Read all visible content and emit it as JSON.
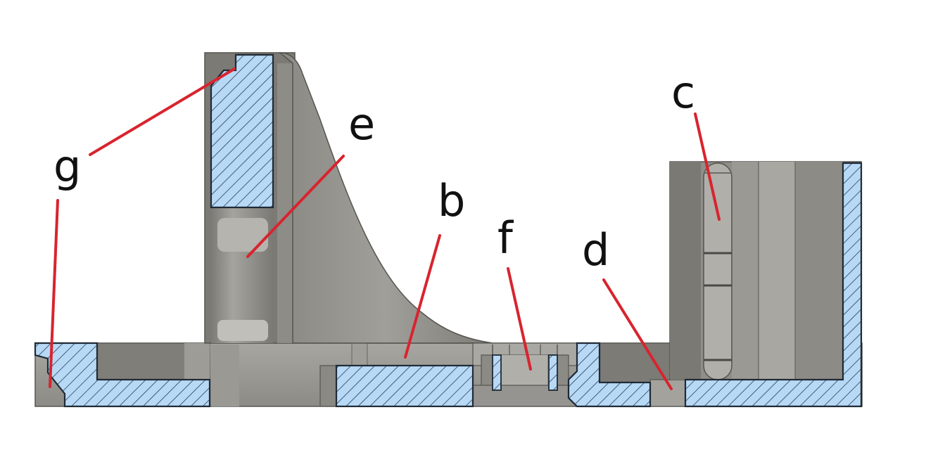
{
  "diagram": {
    "labels": {
      "g": "g",
      "e": "e",
      "b": "b",
      "f": "f",
      "d": "d",
      "c": "c"
    }
  },
  "colors": {
    "section_fill": "#b7d9f6",
    "hatch": "#2a3f55",
    "metal_dark": "#6f6e6a",
    "metal_mid": "#8f8e89",
    "metal_light": "#b3b2ad",
    "leader_line": "#d8242e"
  }
}
